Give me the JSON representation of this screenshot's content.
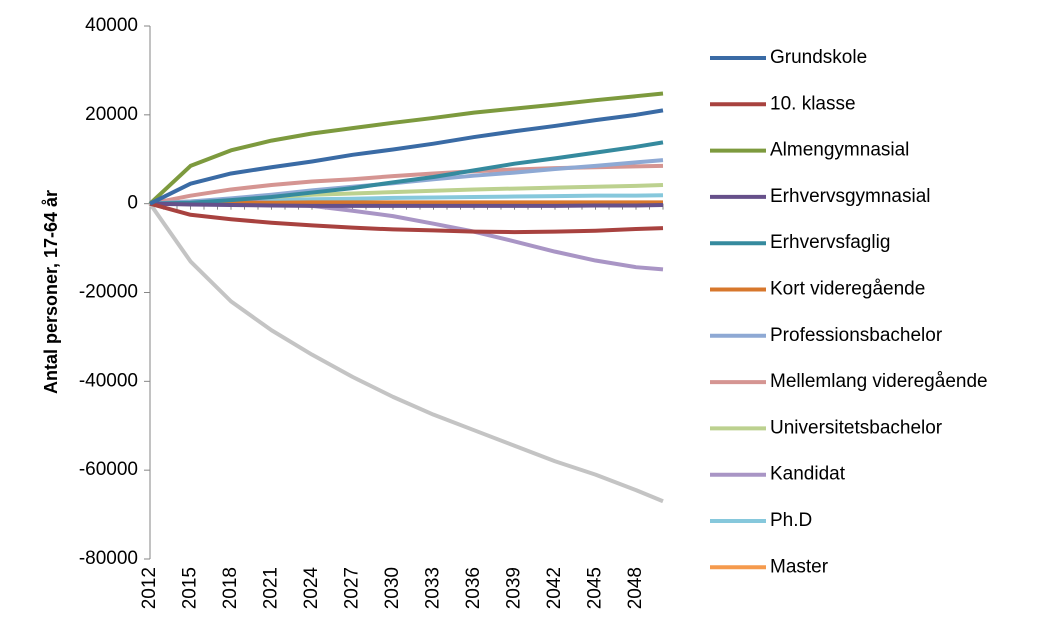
{
  "chart_data": {
    "type": "line",
    "y_label": "Antal personer, 17-64 år",
    "x": [
      2012,
      2015,
      2018,
      2021,
      2024,
      2027,
      2030,
      2033,
      2036,
      2039,
      2042,
      2045,
      2048,
      2050
    ],
    "xlim": [
      2012,
      2050
    ],
    "xticks": [
      2012,
      2015,
      2018,
      2021,
      2024,
      2027,
      2030,
      2033,
      2036,
      2039,
      2042,
      2045,
      2048
    ],
    "ylim": [
      -80000,
      40000
    ],
    "yticks": [
      -80000,
      -60000,
      -40000,
      -20000,
      0,
      20000,
      40000
    ],
    "legend": "right",
    "series": [
      {
        "name": "Grundskole",
        "color": "#3a6ba5",
        "values": [
          0,
          4500,
          6800,
          8200,
          9500,
          11000,
          12200,
          13500,
          15000,
          16300,
          17500,
          18800,
          20000,
          21000
        ]
      },
      {
        "name": "10. klasse",
        "color": "#a8423f",
        "values": [
          0,
          -2500,
          -3500,
          -4300,
          -4900,
          -5400,
          -5800,
          -6000,
          -6300,
          -6400,
          -6300,
          -6100,
          -5700,
          -5500
        ]
      },
      {
        "name": "Almengymnasial",
        "color": "#7d9a3e",
        "values": [
          0,
          8500,
          12000,
          14200,
          15800,
          17000,
          18200,
          19300,
          20500,
          21400,
          22300,
          23300,
          24200,
          24800
        ]
      },
      {
        "name": "Erhvervsgymnasial",
        "color": "#66508a",
        "values": [
          0,
          -200,
          -300,
          -400,
          -500,
          -500,
          -500,
          -500,
          -500,
          -500,
          -500,
          -400,
          -400,
          -300
        ]
      },
      {
        "name": "Erhvervsfaglig",
        "color": "#358a9e",
        "values": [
          0,
          200,
          800,
          1500,
          2500,
          3500,
          4800,
          6000,
          7500,
          9000,
          10200,
          11500,
          12800,
          13800
        ]
      },
      {
        "name": "Kort videregående",
        "color": "#d7772c",
        "values": [
          0,
          100,
          200,
          200,
          300,
          300,
          300,
          300,
          300,
          300,
          300,
          300,
          300,
          300
        ]
      },
      {
        "name": "Professionsbachelor",
        "color": "#8ea9d4",
        "values": [
          0,
          500,
          1200,
          2000,
          3000,
          3800,
          4600,
          5500,
          6300,
          7000,
          7800,
          8500,
          9300,
          9800
        ]
      },
      {
        "name": "Mellemlang videregående",
        "color": "#d59592",
        "values": [
          0,
          1800,
          3200,
          4200,
          5000,
          5500,
          6200,
          6800,
          7300,
          7700,
          8000,
          8200,
          8400,
          8500
        ]
      },
      {
        "name": "Universitetsbachelor",
        "color": "#bcd18f",
        "values": [
          0,
          500,
          1000,
          1500,
          2000,
          2300,
          2600,
          2900,
          3200,
          3400,
          3600,
          3800,
          4000,
          4200
        ]
      },
      {
        "name": "Kandidat",
        "color": "#a995c5",
        "values": [
          0,
          500,
          600,
          200,
          -500,
          -1600,
          -2800,
          -4500,
          -6300,
          -8500,
          -10800,
          -12800,
          -14300,
          -14800
        ]
      },
      {
        "name": "Ph.D",
        "color": "#86c8dc",
        "values": [
          0,
          300,
          600,
          800,
          1000,
          1100,
          1300,
          1400,
          1500,
          1600,
          1700,
          1800,
          1800,
          1900
        ]
      },
      {
        "name": "Master",
        "color": "#f59a4d",
        "values": [
          0,
          -100,
          0,
          0,
          100,
          100,
          100,
          100,
          100,
          100,
          200,
          200,
          200,
          200
        ]
      },
      {
        "name": null,
        "color": "#c4c4c4",
        "values": [
          0,
          -13000,
          -22000,
          -28500,
          -34000,
          -39000,
          -43500,
          -47500,
          -51000,
          -54500,
          -58000,
          -61000,
          -64500,
          -67000
        ]
      }
    ]
  }
}
